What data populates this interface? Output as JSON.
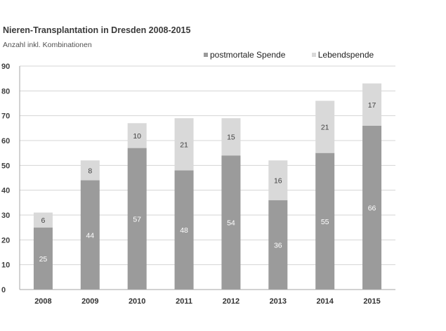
{
  "title": "Nieren-Transplantation in Dresden 2008-2015",
  "subtitle": "Anzahl inkl. Kombinationen",
  "chart_data": {
    "type": "bar",
    "stacked": true,
    "categories": [
      "2008",
      "2009",
      "2010",
      "2011",
      "2012",
      "2013",
      "2014",
      "2015"
    ],
    "series": [
      {
        "name": "postmortale Spende",
        "color": "#9b9b9b",
        "label_color": "#ffffff",
        "values": [
          25,
          44,
          57,
          48,
          54,
          36,
          55,
          66
        ]
      },
      {
        "name": "Lebendspende",
        "color": "#d9d9d9",
        "label_color": "#404040",
        "values": [
          6,
          8,
          10,
          21,
          15,
          16,
          21,
          17
        ]
      }
    ],
    "ylim": [
      0,
      90
    ],
    "yticks": [
      0,
      10,
      20,
      30,
      40,
      50,
      60,
      70,
      80,
      90
    ],
    "grid": true,
    "legend": "top-right",
    "xlabel": "",
    "ylabel": ""
  }
}
